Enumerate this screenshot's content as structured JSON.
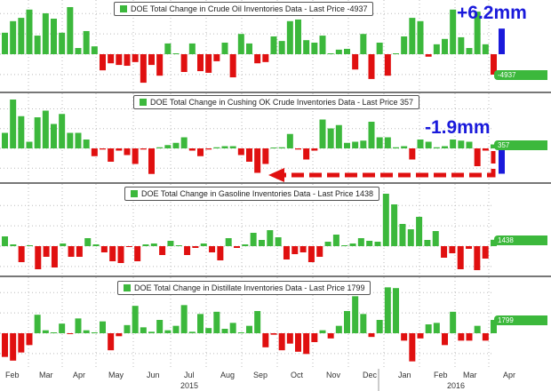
{
  "chart_data": [
    {
      "type": "bar",
      "title": "DOE Total Change in Crude Oil Inventories Data - Last Price -4937",
      "last_price": "-4937",
      "unit": "mm barrels",
      "values": [
        5.2,
        8.0,
        8.8,
        10.8,
        4.5,
        9.9,
        8.6,
        5.2,
        11.4,
        1.5,
        5.6,
        1.9,
        -3.9,
        -2.2,
        -2.6,
        -2.8,
        -1.9,
        -6.9,
        -2.6,
        -5.2,
        2.6,
        0.2,
        -4.3,
        2.6,
        -4.1,
        -4.5,
        -1.7,
        2.8,
        -5.6,
        4.9,
        2.6,
        -2.2,
        -1.9,
        4.3,
        3.2,
        8.0,
        8.4,
        3.4,
        2.8,
        4.5,
        0.2,
        1.1,
        1.3,
        -3.7,
        4.9,
        -6.0,
        2.8,
        -5.2,
        0.2,
        4.3,
        8.8,
        8.0,
        -0.6,
        2.4,
        3.7,
        10.8,
        4.1,
        1.5,
        10.3,
        2.4,
        -4.937
      ],
      "annotation": {
        "text": "+6.2mm",
        "value": 6.2
      }
    },
    {
      "type": "bar",
      "title": "DOE Total Change in Cushing OK Crude Inventories Data - Last Price 357",
      "last_price": "357",
      "unit": "mm barrels",
      "values": [
        1.4,
        4.4,
        2.9,
        0.6,
        2.8,
        3.4,
        2.2,
        3.1,
        1.4,
        1.4,
        0.8,
        -0.7,
        -0.1,
        -1.2,
        -0.2,
        -0.6,
        -1.4,
        -0.1,
        -2.3,
        0.1,
        0.3,
        0.5,
        1.0,
        -0.2,
        -0.7,
        -0.1,
        0.1,
        0.2,
        0.2,
        -0.6,
        -1.2,
        -2.2,
        -1.4,
        0.0,
        0.1,
        1.3,
        -0.1,
        -1.0,
        -0.2,
        2.6,
        1.8,
        2.1,
        0.5,
        0.6,
        0.7,
        2.4,
        1.0,
        1.0,
        0.1,
        0.2,
        -1.0,
        0.8,
        0.6,
        0.1,
        0.2,
        0.8,
        0.7,
        0.6,
        -1.6,
        -0.2,
        0.357
      ],
      "annotation": {
        "text": "-1.9mm",
        "value": -1.9
      }
    },
    {
      "type": "bar",
      "title": "DOE Total Change in Gasoline Inventories Data - Last Price 1438",
      "last_price": "1438",
      "unit": "mm barrels",
      "values": [
        2.2,
        0.4,
        -3.6,
        0,
        -5.2,
        -2.4,
        -4.8,
        0.6,
        -2.4,
        -2.4,
        1.8,
        0.4,
        -1.4,
        -3.4,
        -3.8,
        -0.2,
        -3.4,
        0.4,
        0.6,
        -2.0,
        1.2,
        0,
        -2.0,
        -0.4,
        0.6,
        -1.4,
        -3.2,
        1.8,
        -0.4,
        0.4,
        3.0,
        1.4,
        3.6,
        2.0,
        -3.0,
        -1.8,
        -1.4,
        -3.6,
        -2.4,
        1.0,
        2.6,
        0,
        0.6,
        1.8,
        1.2,
        1.0,
        11.8,
        9.4,
        5.0,
        3.8,
        6.6,
        1.4,
        3.4,
        -2.6,
        -1.6,
        -5.2,
        -0.6,
        -5.4,
        -2.8,
        1.438
      ]
    },
    {
      "type": "bar",
      "title": "DOE Total Change in Distillate Inventories Data - Last Price 1799",
      "last_price": "1799",
      "unit": "mm barrels",
      "values": [
        -3.2,
        -3.7,
        -2.6,
        -1.6,
        2.5,
        0.4,
        0,
        1.3,
        -0.1,
        2.0,
        0.4,
        0,
        1.6,
        -2.3,
        -0.4,
        1.1,
        3.7,
        0.8,
        0.2,
        1.8,
        0.4,
        1.0,
        3.8,
        0.2,
        2.6,
        0.7,
        2.9,
        0.6,
        1.4,
        0.1,
        1.0,
        3.0,
        -1.9,
        -0.2,
        -2.3,
        -1.4,
        -2.5,
        -2.8,
        -1.2,
        0.4,
        -0.7,
        1.0,
        3.0,
        5.0,
        2.6,
        -0.5,
        1.8,
        6.2,
        6.1,
        -1.0,
        -3.8,
        -0.7,
        1.2,
        1.4,
        -1.6,
        2.9,
        -1.0,
        -1.0,
        1.0,
        -1.0,
        1.799
      ]
    }
  ],
  "x_axis": {
    "months": [
      "Feb",
      "Mar",
      "Apr",
      "May",
      "Jun",
      "Jul",
      "Aug",
      "Sep",
      "Oct",
      "Nov",
      "Dec",
      "Jan",
      "Feb",
      "Mar",
      "Apr"
    ],
    "years": [
      "2015",
      "2016"
    ]
  },
  "colors": {
    "positive": "#3cb83c",
    "negative": "#e01010",
    "annotation": "#1a1adb",
    "arrow": "#e01010"
  }
}
